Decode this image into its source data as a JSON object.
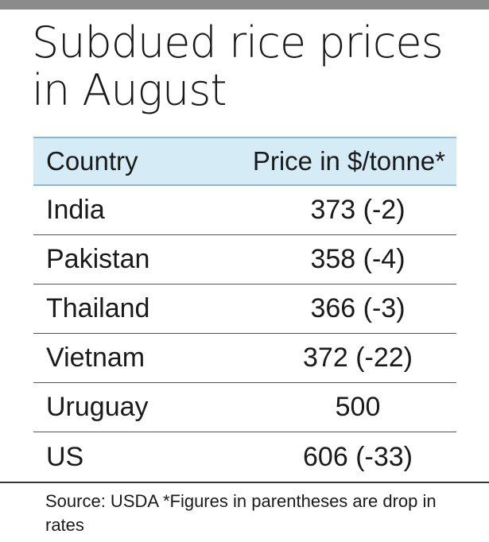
{
  "chart_data": {
    "type": "table",
    "title": "Subdued rice prices in August",
    "columns": [
      "Country",
      "Price  in $/tonne*"
    ],
    "rows": [
      {
        "country": "India",
        "price": "373  (-2)",
        "value": 373,
        "change": -2
      },
      {
        "country": "Pakistan",
        "price": "358  (-4)",
        "value": 358,
        "change": -4
      },
      {
        "country": "Thailand",
        "price": "366 (-3)",
        "value": 366,
        "change": -3
      },
      {
        "country": "Vietnam",
        "price": "372 (-22)",
        "value": 372,
        "change": -22
      },
      {
        "country": "Uruguay",
        "price": "500",
        "value": 500,
        "change": null
      },
      {
        "country": "US",
        "price": "606 (-33)",
        "value": 606,
        "change": -33
      }
    ],
    "footnote": "Source: USDA  *Figures in parentheses are drop in rates"
  },
  "colors": {
    "header_background": "#d5ebf6",
    "top_bar": "#8a8a8a"
  }
}
